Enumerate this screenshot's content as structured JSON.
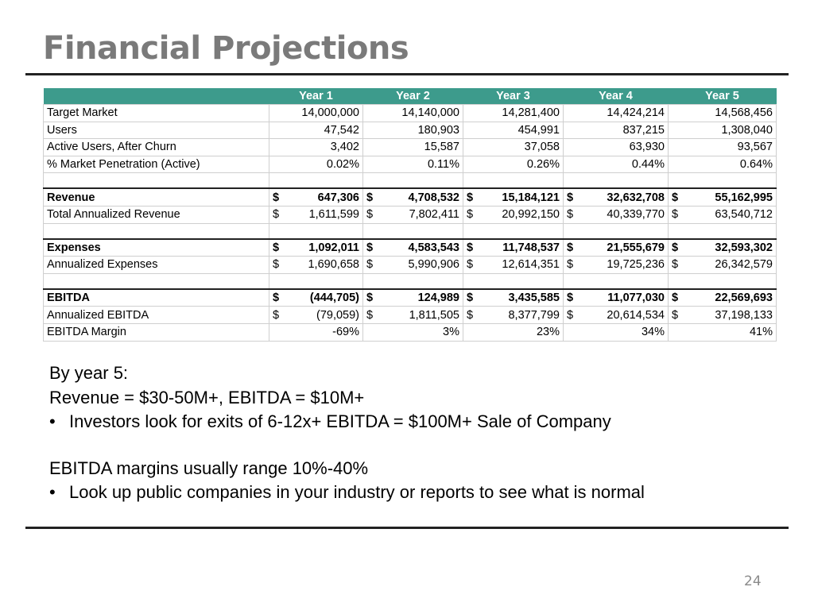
{
  "slide": {
    "title": "Financial Projections",
    "page_number": "24"
  },
  "table": {
    "headers": [
      "",
      "Year 1",
      "Year 2",
      "Year 3",
      "Year 4",
      "Year 5"
    ],
    "rows": [
      {
        "label": "Target Market",
        "bold": false,
        "cells": [
          "14,000,000",
          "14,140,000",
          "14,281,400",
          "14,424,214",
          "14,568,456"
        ],
        "currency": false
      },
      {
        "label": "Users",
        "bold": false,
        "cells": [
          "47,542",
          "180,903",
          "454,991",
          "837,215",
          "1,308,040"
        ],
        "currency": false
      },
      {
        "label": "Active Users, After Churn",
        "bold": false,
        "cells": [
          "3,402",
          "15,587",
          "37,058",
          "63,930",
          "93,567"
        ],
        "currency": false
      },
      {
        "label": "% Market Penetration (Active)",
        "bold": false,
        "cells": [
          "0.02%",
          "0.11%",
          "0.26%",
          "0.44%",
          "0.64%"
        ],
        "currency": false
      },
      {
        "label": "",
        "blank": true
      },
      {
        "label": "Revenue",
        "bold": true,
        "cells": [
          "647,306",
          "4,708,532",
          "15,184,121",
          "32,632,708",
          "55,162,995"
        ],
        "currency": true
      },
      {
        "label": "Total Annualized Revenue",
        "bold": false,
        "cells": [
          "1,611,599",
          "7,802,411",
          "20,992,150",
          "40,339,770",
          "63,540,712"
        ],
        "currency": true
      },
      {
        "label": "",
        "blank": true
      },
      {
        "label": "Expenses",
        "bold": true,
        "cells": [
          "1,092,011",
          "4,583,543",
          "11,748,537",
          "21,555,679",
          "32,593,302"
        ],
        "currency": true
      },
      {
        "label": "Annualized Expenses",
        "bold": false,
        "cells": [
          "1,690,658",
          "5,990,906",
          "12,614,351",
          "19,725,236",
          "26,342,579"
        ],
        "currency": true
      },
      {
        "label": "",
        "blank": true
      },
      {
        "label": "EBITDA",
        "bold": true,
        "cells": [
          "(444,705)",
          "124,989",
          "3,435,585",
          "11,077,030",
          "22,569,693"
        ],
        "currency": true
      },
      {
        "label": "Annualized EBITDA",
        "bold": false,
        "cells": [
          "(79,059)",
          "1,811,505",
          "8,377,799",
          "20,614,534",
          "37,198,133"
        ],
        "currency": true
      },
      {
        "label": "EBITDA Margin",
        "bold": false,
        "cells": [
          "-69%",
          "3%",
          "23%",
          "34%",
          "41%"
        ],
        "currency": false
      }
    ],
    "currency_symbol": "$"
  },
  "notes": {
    "line1": "By year 5:",
    "line2": "Revenue = $30-50M+, EBITDA = $10M+",
    "bullet1": "Investors look for exits of 6-12x+ EBITDA = $100M+ Sale of Company",
    "line3": "EBITDA margins usually range 10%-40%",
    "bullet2": "Look up public companies in your industry or reports to see what is normal",
    "bullet_char": "•"
  }
}
